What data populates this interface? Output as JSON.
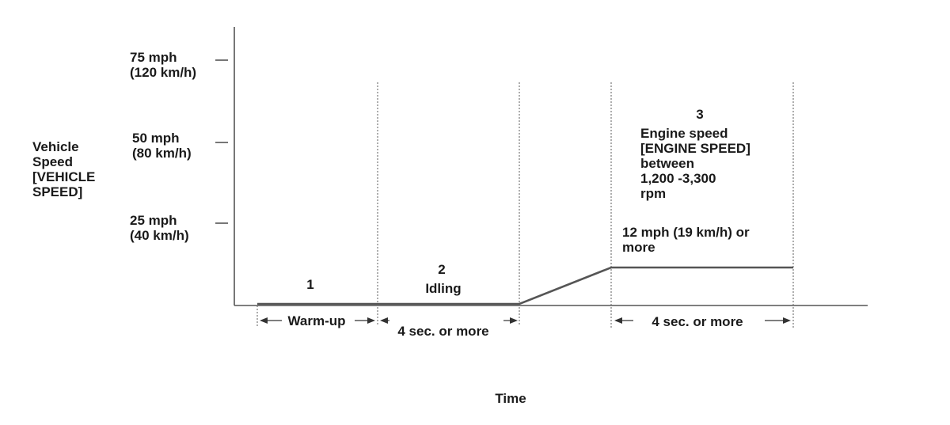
{
  "y_axis": {
    "label_lines": [
      "Vehicle",
      "Speed",
      "[VEHICLE",
      "SPEED]"
    ],
    "ticks": [
      {
        "mph": "75 mph",
        "kmh": "(120 km/h)"
      },
      {
        "mph": "50 mph",
        "kmh": "(80 km/h)"
      },
      {
        "mph": "25 mph",
        "kmh": "(40 km/h)"
      }
    ]
  },
  "x_axis": {
    "label": "Time"
  },
  "phases": {
    "phase1": {
      "number": "1",
      "duration": "Warm-up"
    },
    "phase2": {
      "number": "2",
      "name": "Idling",
      "duration": "4 sec. or more"
    },
    "phase3": {
      "number": "3",
      "condition_lines": [
        "Engine speed",
        "[ENGINE SPEED]",
        "between",
        "1,200 -3,300",
        "rpm"
      ],
      "speed_lines": [
        "12 mph (19 km/h) or",
        "more"
      ],
      "duration": "4 sec. or more"
    }
  }
}
